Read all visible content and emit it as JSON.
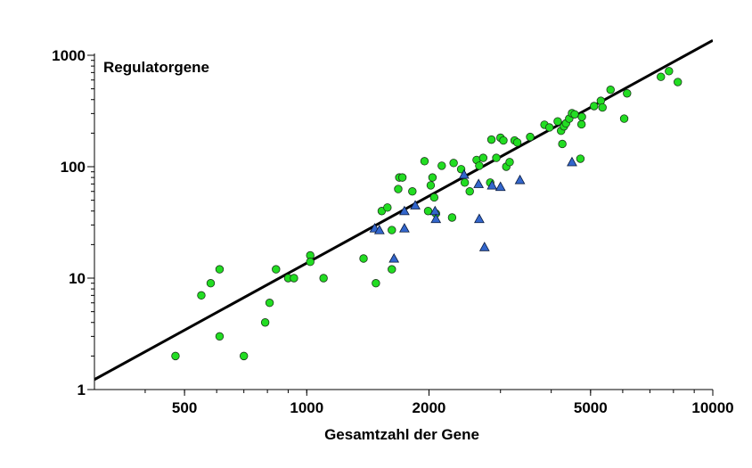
{
  "chart_data": {
    "type": "scatter",
    "title": "Regulatorgene",
    "xlabel": "Gesamtzahl der Gene",
    "ylabel": "",
    "x_scale": "log",
    "y_scale": "log",
    "xlim": [
      300,
      10000
    ],
    "ylim": [
      1,
      1000
    ],
    "x_ticks": [
      {
        "value": 500,
        "label": "500"
      },
      {
        "value": 1000,
        "label": "1000"
      },
      {
        "value": 2000,
        "label": "2000"
      },
      {
        "value": 5000,
        "label": "5000"
      },
      {
        "value": 10000,
        "label": "10000"
      }
    ],
    "y_ticks": [
      {
        "value": 1,
        "label": "1"
      },
      {
        "value": 10,
        "label": "10"
      },
      {
        "value": 100,
        "label": "100"
      },
      {
        "value": 1000,
        "label": "1000"
      }
    ],
    "grid": false,
    "trend_line": {
      "points": [
        [
          300,
          1.23
        ],
        [
          10000,
          1360
        ]
      ],
      "color": "#000000"
    },
    "series": [
      {
        "marker": "circle",
        "color": "#22dd22",
        "points": [
          [
            475,
            2
          ],
          [
            550,
            7
          ],
          [
            580,
            9
          ],
          [
            610,
            12
          ],
          [
            610,
            3
          ],
          [
            700,
            2
          ],
          [
            790,
            4
          ],
          [
            810,
            6
          ],
          [
            840,
            12
          ],
          [
            900,
            10
          ],
          [
            930,
            10
          ],
          [
            1020,
            16
          ],
          [
            1020,
            14
          ],
          [
            1100,
            10
          ],
          [
            1380,
            15
          ],
          [
            1480,
            9
          ],
          [
            1530,
            40
          ],
          [
            1580,
            43
          ],
          [
            1620,
            27
          ],
          [
            1620,
            12
          ],
          [
            1680,
            63
          ],
          [
            1690,
            80
          ],
          [
            1720,
            80
          ],
          [
            1820,
            60
          ],
          [
            1950,
            112
          ],
          [
            1990,
            40
          ],
          [
            2020,
            68
          ],
          [
            2040,
            80
          ],
          [
            2060,
            53
          ],
          [
            2080,
            38
          ],
          [
            2150,
            102
          ],
          [
            2280,
            35
          ],
          [
            2300,
            108
          ],
          [
            2400,
            95
          ],
          [
            2450,
            72
          ],
          [
            2520,
            60
          ],
          [
            2620,
            115
          ],
          [
            2660,
            102
          ],
          [
            2720,
            120
          ],
          [
            2830,
            72
          ],
          [
            2850,
            175
          ],
          [
            2930,
            120
          ],
          [
            3000,
            182
          ],
          [
            3050,
            172
          ],
          [
            3100,
            100
          ],
          [
            3160,
            110
          ],
          [
            3250,
            172
          ],
          [
            3300,
            165
          ],
          [
            3550,
            185
          ],
          [
            3850,
            238
          ],
          [
            3960,
            225
          ],
          [
            4150,
            255
          ],
          [
            4230,
            210
          ],
          [
            4260,
            160
          ],
          [
            4300,
            230
          ],
          [
            4350,
            245
          ],
          [
            4430,
            270
          ],
          [
            4500,
            302
          ],
          [
            4570,
            295
          ],
          [
            4720,
            118
          ],
          [
            4750,
            240
          ],
          [
            4760,
            280
          ],
          [
            5100,
            350
          ],
          [
            5300,
            390
          ],
          [
            5350,
            340
          ],
          [
            5600,
            490
          ],
          [
            6050,
            270
          ],
          [
            6150,
            455
          ],
          [
            7450,
            640
          ],
          [
            7800,
            720
          ],
          [
            8200,
            575
          ]
        ]
      },
      {
        "marker": "triangle",
        "color": "#3366cc",
        "points": [
          [
            1470,
            28
          ],
          [
            1510,
            27
          ],
          [
            1640,
            15
          ],
          [
            1740,
            40
          ],
          [
            1740,
            28
          ],
          [
            1850,
            45
          ],
          [
            2070,
            40
          ],
          [
            2080,
            34
          ],
          [
            2440,
            85
          ],
          [
            2650,
            70
          ],
          [
            2660,
            34
          ],
          [
            2740,
            19
          ],
          [
            2860,
            68
          ],
          [
            3000,
            66
          ],
          [
            3350,
            76
          ],
          [
            4500,
            110
          ]
        ]
      }
    ]
  }
}
